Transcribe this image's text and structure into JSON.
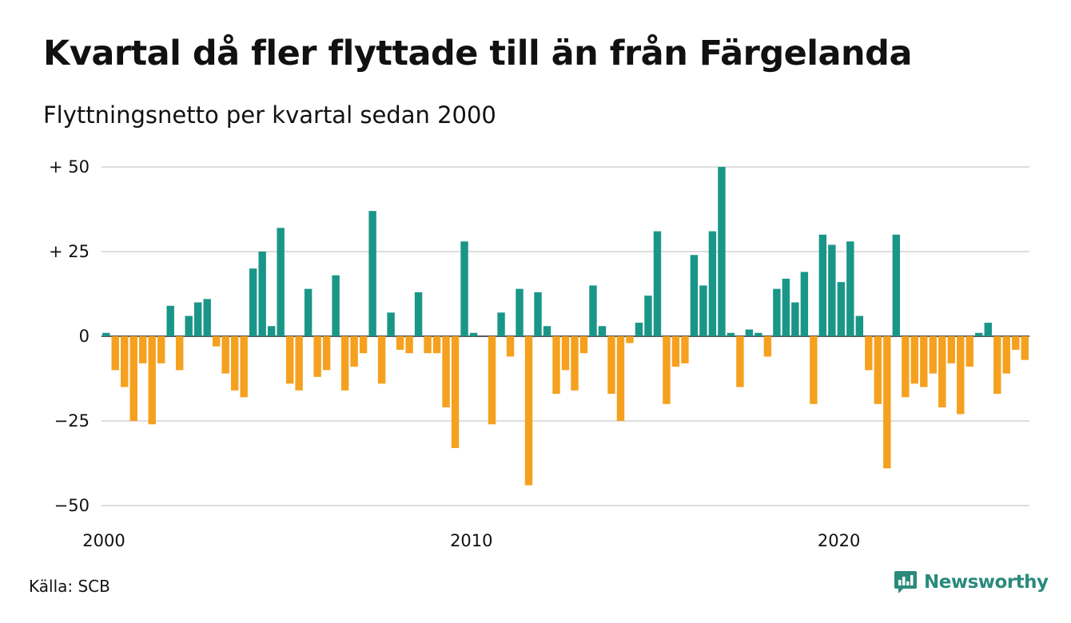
{
  "title": "Kvartal då fler flyttade till än från Färgelanda",
  "subtitle": "Flyttningsnetto per kvartal sedan 2000",
  "source": "Källa: SCB",
  "brand": {
    "name": "Newsworthy",
    "icon": "newsworthy-logo-icon"
  },
  "colors": {
    "positive": "#1a9688",
    "negative": "#f5a11f",
    "grid": "#dddddd",
    "brand": "#2a8a7c"
  },
  "chart_data": {
    "type": "bar",
    "x_start": 2000,
    "x_step": 0.25,
    "xlim": [
      2000,
      2025.25
    ],
    "ylim": [
      -50,
      50
    ],
    "grid": true,
    "x_ticks": [
      {
        "value": 2000,
        "label": "2000"
      },
      {
        "value": 2010,
        "label": "2010"
      },
      {
        "value": 2020,
        "label": "2020"
      }
    ],
    "y_ticks": [
      {
        "value": 50,
        "label": "+ 50"
      },
      {
        "value": 25,
        "label": "+ 25"
      },
      {
        "value": 0,
        "label": "0"
      },
      {
        "value": -25,
        "label": "−25"
      },
      {
        "value": -50,
        "label": "−50"
      }
    ],
    "values": [
      1,
      -10,
      -15,
      -25,
      -8,
      -26,
      -8,
      9,
      -10,
      6,
      10,
      11,
      -3,
      -11,
      -16,
      -18,
      20,
      25,
      3,
      32,
      -14,
      -16,
      14,
      -12,
      -10,
      18,
      -16,
      -9,
      -5,
      37,
      -14,
      7,
      -4,
      -5,
      13,
      -5,
      -5,
      -21,
      -33,
      28,
      1,
      0,
      -26,
      7,
      -6,
      14,
      -44,
      13,
      3,
      -17,
      -10,
      -16,
      -5,
      15,
      3,
      -17,
      -25,
      -2,
      4,
      12,
      31,
      -20,
      -9,
      -8,
      24,
      15,
      31,
      50,
      1,
      -15,
      2,
      1,
      -6,
      14,
      17,
      10,
      19,
      -20,
      30,
      27,
      16,
      28,
      6,
      -10,
      -20,
      -39,
      30,
      -18,
      -14,
      -15,
      -11,
      -21,
      -8,
      -23,
      -9,
      1,
      4,
      -17,
      -11,
      -4,
      -7
    ]
  }
}
